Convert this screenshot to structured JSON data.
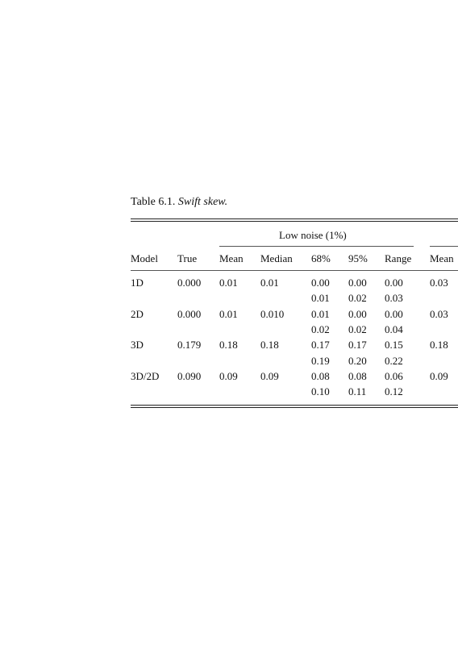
{
  "caption": {
    "label": "Table 6.1.",
    "title": "Swift skew."
  },
  "table": {
    "group_header": "Low noise (1%)",
    "columns": [
      "Model",
      "True",
      "Mean",
      "Median",
      "68%",
      "95%",
      "Range",
      "Mean"
    ],
    "rows": [
      {
        "model": "1D",
        "true": "0.000",
        "mean": "0.01",
        "median": "0.01",
        "ci68": [
          "0.00",
          "0.01"
        ],
        "ci95": [
          "0.00",
          "0.02"
        ],
        "range": [
          "0.00",
          "0.03"
        ],
        "mean_next": "0.03"
      },
      {
        "model": "2D",
        "true": "0.000",
        "mean": "0.01",
        "median": "0.010",
        "ci68": [
          "0.01",
          "0.02"
        ],
        "ci95": [
          "0.00",
          "0.02"
        ],
        "range": [
          "0.00",
          "0.04"
        ],
        "mean_next": "0.03"
      },
      {
        "model": "3D",
        "true": "0.179",
        "mean": "0.18",
        "median": "0.18",
        "ci68": [
          "0.17",
          "0.19"
        ],
        "ci95": [
          "0.17",
          "0.20"
        ],
        "range": [
          "0.15",
          "0.22"
        ],
        "mean_next": "0.18"
      },
      {
        "model": "3D/2D",
        "true": "0.090",
        "mean": "0.09",
        "median": "0.09",
        "ci68": [
          "0.08",
          "0.10"
        ],
        "ci95": [
          "0.08",
          "0.11"
        ],
        "range": [
          "0.06",
          "0.12"
        ],
        "mean_next": "0.09"
      }
    ]
  }
}
